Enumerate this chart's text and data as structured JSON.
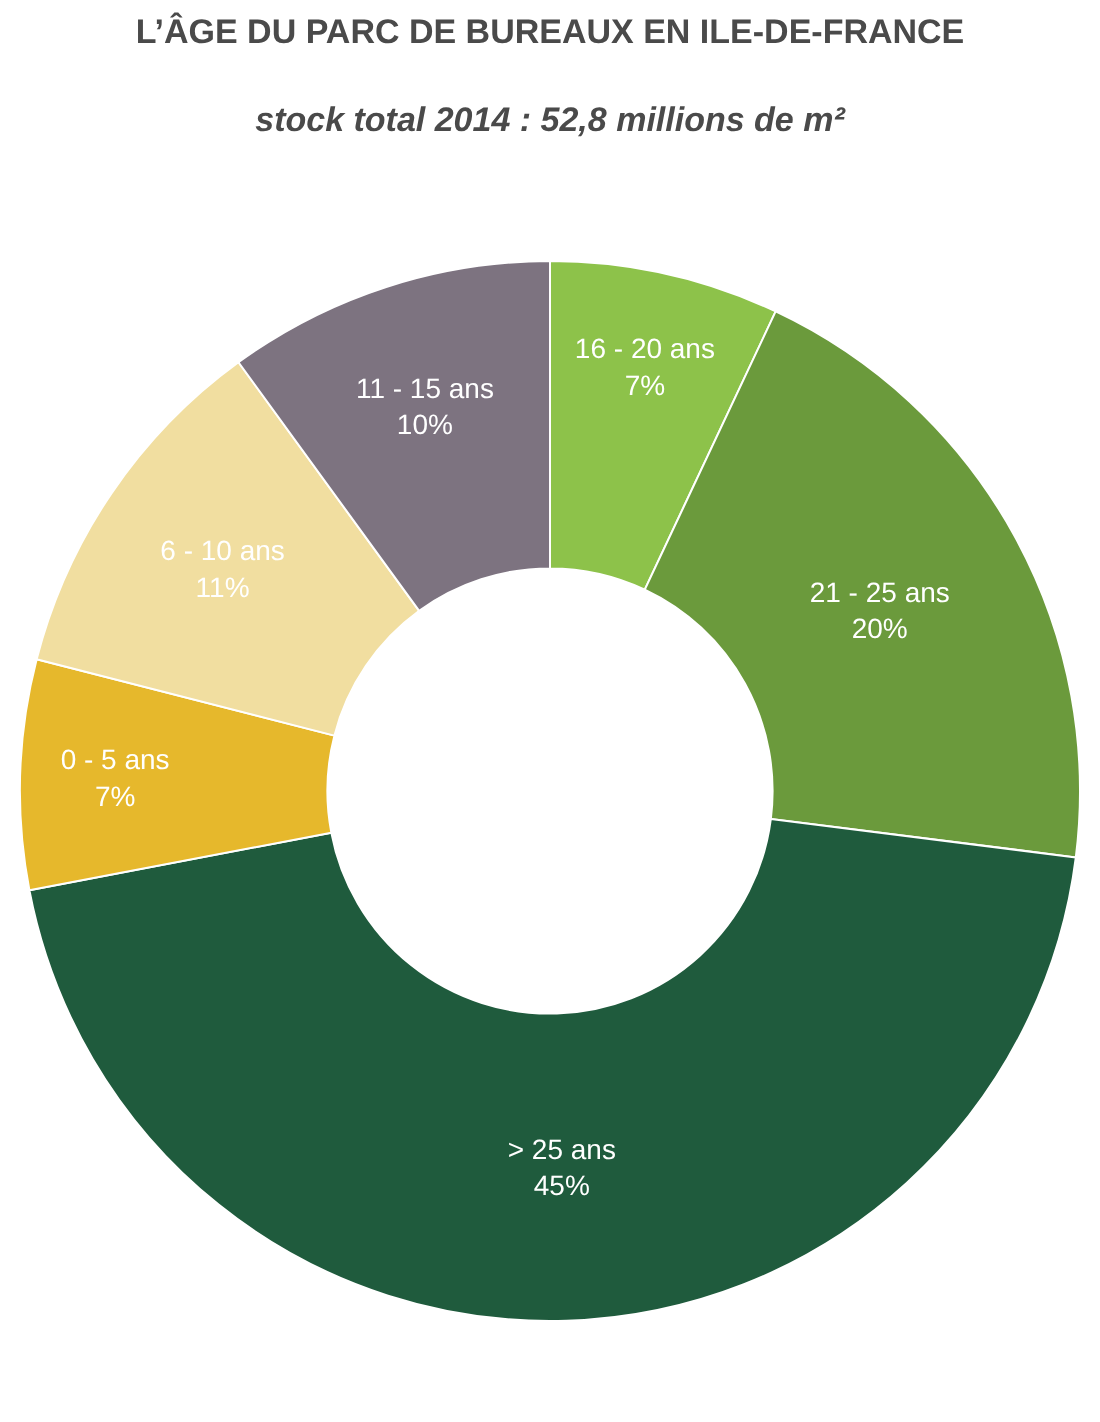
{
  "chart_data": {
    "type": "donut",
    "title": "L’ÂGE DU PARC DE BUREAUX EN ILE-DE-FRANCE",
    "subtitle": "stock total 2014 : 52,8 millions de m²",
    "categories": [
      "16 - 20 ans",
      "21 - 25 ans",
      "> 25 ans",
      "0 - 5 ans",
      "6 - 10 ans",
      "11 - 15 ans"
    ],
    "values": [
      7,
      20,
      45,
      7,
      11,
      10
    ],
    "value_labels": [
      "7%",
      "20%",
      "45%",
      "7%",
      "11%",
      "10%"
    ],
    "colors": [
      "#8dc24a",
      "#6b9a3c",
      "#1f5b3d",
      "#e6b82c",
      "#f1dea0",
      "#7d7380"
    ],
    "legend": false
  }
}
